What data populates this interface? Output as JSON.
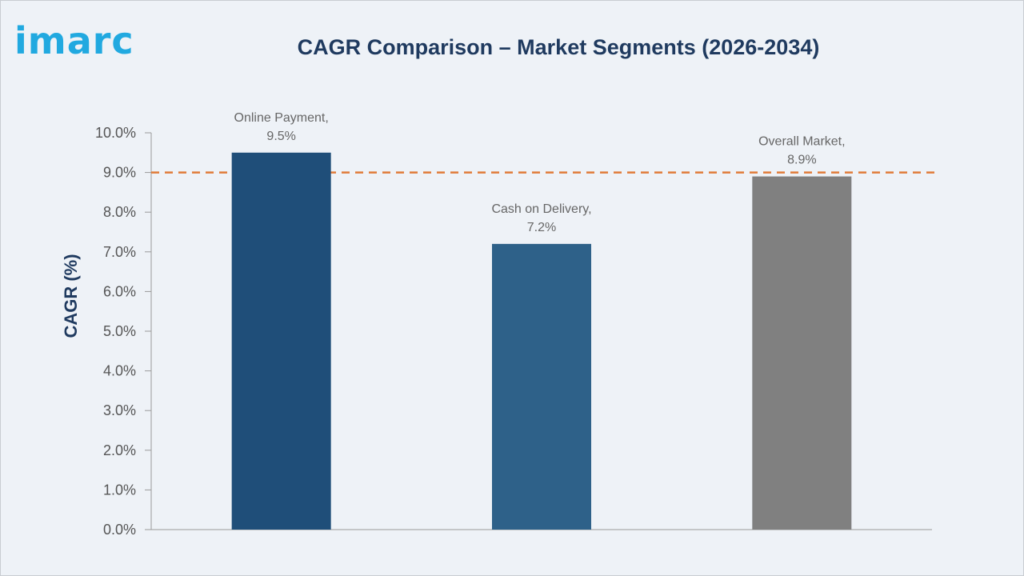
{
  "brand": {
    "logo_text": "imarc"
  },
  "chart_data": {
    "type": "bar",
    "title": "CAGR Comparison – Market Segments (2026-2034)",
    "xlabel": "",
    "ylabel": "CAGR (%)",
    "ylim": [
      0,
      10
    ],
    "y_ticks": [
      "0.0%",
      "1.0%",
      "2.0%",
      "3.0%",
      "4.0%",
      "5.0%",
      "6.0%",
      "7.0%",
      "8.0%",
      "9.0%",
      "10.0%"
    ],
    "categories": [
      "Online Payment",
      "Cash on Delivery",
      "Overall Market"
    ],
    "values": [
      9.5,
      7.2,
      8.9
    ],
    "data_labels": [
      [
        "Online Payment,",
        "9.5%"
      ],
      [
        "Cash on Delivery,",
        "7.2%"
      ],
      [
        "Overall Market,",
        "8.9%"
      ]
    ],
    "colors": [
      "#1f4e79",
      "#2e6189",
      "#808080"
    ],
    "reference_line": {
      "value": 9.0,
      "color": "#e07b39",
      "style": "dashed"
    },
    "grid": false,
    "legend": "none"
  }
}
